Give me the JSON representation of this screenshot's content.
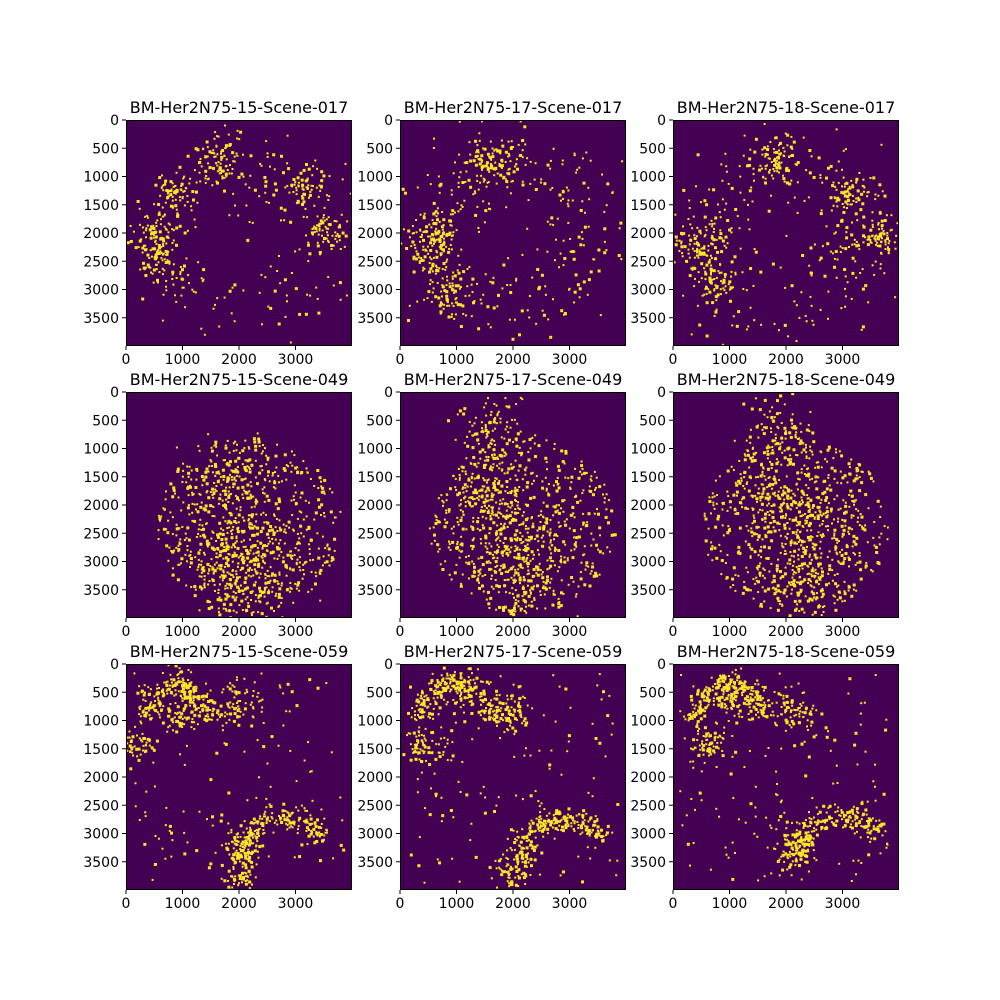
{
  "chart_data": {
    "type": "heatmap",
    "layout": {
      "rows": 3,
      "cols": 3
    },
    "colors": {
      "background": "#440154",
      "foreground": "#fde725",
      "axis": "#000000"
    },
    "x_ticks": [
      0,
      1000,
      2000,
      3000
    ],
    "y_ticks": [
      0,
      500,
      1000,
      1500,
      2000,
      2500,
      3000,
      3500
    ],
    "xlim": [
      0,
      4000
    ],
    "ylim": [
      4000,
      0
    ],
    "panels": [
      {
        "title": "BM-Her2N75-15-Scene-017",
        "pattern": "ring",
        "density": 230,
        "clusters": [
          [
            1650,
            700,
            220
          ],
          [
            500,
            2000,
            200
          ],
          [
            600,
            2500,
            180
          ],
          [
            800,
            1250,
            150
          ],
          [
            3150,
            1200,
            150
          ],
          [
            3500,
            1900,
            180
          ]
        ]
      },
      {
        "title": "BM-Her2N75-17-Scene-017",
        "pattern": "ring",
        "density": 300,
        "clusters": [
          [
            1600,
            700,
            250
          ],
          [
            500,
            2300,
            250
          ],
          [
            850,
            3100,
            200
          ],
          [
            700,
            1900,
            150
          ]
        ]
      },
      {
        "title": "BM-Her2N75-18-Scene-017",
        "pattern": "ring",
        "density": 280,
        "clusters": [
          [
            450,
            2200,
            250
          ],
          [
            700,
            2800,
            200
          ],
          [
            1800,
            700,
            200
          ],
          [
            3600,
            2100,
            200
          ],
          [
            3100,
            1300,
            180
          ]
        ]
      },
      {
        "title": "BM-Her2N75-15-Scene-049",
        "pattern": "blob",
        "density": 500,
        "clusters": [
          [
            1800,
            1500,
            350
          ],
          [
            2300,
            2500,
            400
          ],
          [
            2300,
            3300,
            400
          ],
          [
            1700,
            3100,
            300
          ]
        ]
      },
      {
        "title": "BM-Her2N75-17-Scene-049",
        "pattern": "blob",
        "density": 560,
        "clusters": [
          [
            1600,
            700,
            300
          ],
          [
            2100,
            2500,
            400
          ],
          [
            2200,
            3300,
            400
          ],
          [
            1400,
            1800,
            300
          ]
        ]
      },
      {
        "title": "BM-Her2N75-18-Scene-049",
        "pattern": "blob",
        "density": 540,
        "clusters": [
          [
            1800,
            700,
            300
          ],
          [
            2400,
            2300,
            400
          ],
          [
            2300,
            3300,
            400
          ],
          [
            1700,
            1700,
            300
          ]
        ]
      },
      {
        "title": "BM-Her2N75-15-Scene-059",
        "pattern": "arcs",
        "density": 120,
        "clusters": [
          [
            950,
            300,
            150
          ],
          [
            950,
            900,
            180
          ],
          [
            1950,
            700,
            200
          ],
          [
            150,
            1400,
            150
          ],
          [
            2050,
            3200,
            200
          ],
          [
            2000,
            3750,
            150
          ]
        ],
        "arcs": [
          [
            900,
            1000,
            600,
            180,
            360,
            160
          ],
          [
            2800,
            3500,
            800,
            180,
            330,
            200
          ]
        ]
      },
      {
        "title": "BM-Her2N75-17-Scene-059",
        "pattern": "arcs",
        "density": 140,
        "clusters": [
          [
            1000,
            400,
            200
          ],
          [
            1900,
            900,
            200
          ],
          [
            2000,
            3600,
            200
          ],
          [
            400,
            1500,
            200
          ]
        ],
        "arcs": [
          [
            950,
            1000,
            650,
            180,
            360,
            200
          ],
          [
            2900,
            3500,
            800,
            180,
            330,
            220
          ]
        ]
      },
      {
        "title": "BM-Her2N75-18-Scene-059",
        "pattern": "arcs",
        "density": 140,
        "clusters": [
          [
            1100,
            600,
            200
          ],
          [
            2100,
            800,
            200
          ],
          [
            2100,
            3300,
            200
          ],
          [
            600,
            1400,
            200
          ]
        ],
        "arcs": [
          [
            1000,
            1000,
            650,
            180,
            360,
            200
          ],
          [
            2950,
            3450,
            800,
            180,
            330,
            220
          ]
        ]
      }
    ]
  }
}
